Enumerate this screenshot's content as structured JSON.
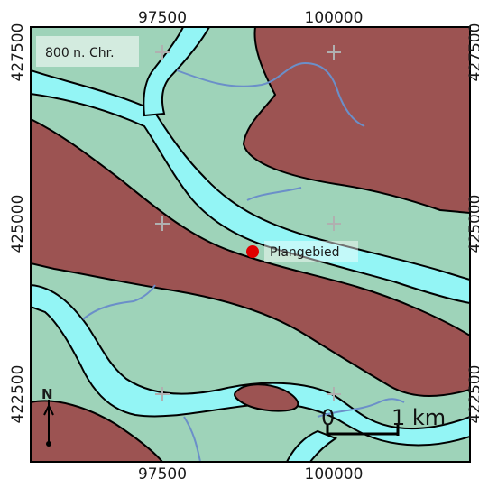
{
  "map": {
    "era_label": "800 n. Chr.",
    "site_label": "Plangebied",
    "north_label": "N",
    "scale_zero": "0",
    "scale_unit": "1 km",
    "x_ticks_top": [
      "97500",
      "100000"
    ],
    "x_ticks_bottom": [
      "97500",
      "100000"
    ],
    "y_ticks_left": [
      "427500",
      "425000",
      "422500"
    ],
    "y_ticks_right": [
      "427500",
      "425000",
      "422500"
    ],
    "colors": {
      "channel": "#93f5f5",
      "levee": "#9ed3b9",
      "floodbasin": "#9c5352",
      "stream": "#6b8fc9",
      "site_marker": "#e00000",
      "grid_cross": "#b0b0b0"
    },
    "legend_units": [
      "channel",
      "levee",
      "floodbasin"
    ]
  }
}
